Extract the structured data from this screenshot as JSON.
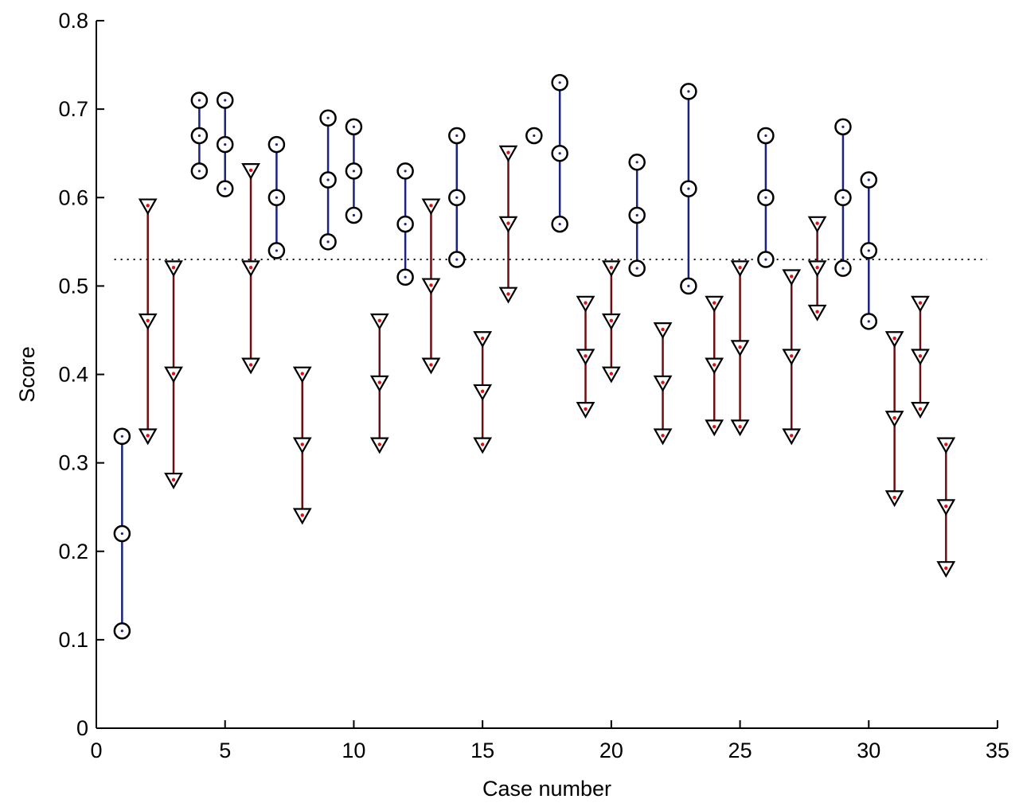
{
  "chart_data": {
    "type": "scatter",
    "title": "",
    "xlabel": "Case number",
    "ylabel": "Score",
    "xlim": [
      0,
      35
    ],
    "ylim": [
      0,
      0.8
    ],
    "xticks": [
      "0",
      "5",
      "10",
      "15",
      "20",
      "25",
      "30",
      "35"
    ],
    "yticks": [
      "0",
      "0.1",
      "0.2",
      "0.3",
      "0.4",
      "0.5",
      "0.6",
      "0.7",
      "0.8"
    ],
    "threshold": 0.53,
    "grid": false,
    "colors": {
      "circle_series": "#1a237e",
      "triangle_series": "#6d0f12",
      "triangle_center_dot": "#e01010",
      "threshold_line": "#000000"
    },
    "series": [
      {
        "marker": "circle",
        "points": [
          {
            "case": 1,
            "values": [
              0.33,
              0.22,
              0.11
            ]
          },
          {
            "case": 4,
            "values": [
              0.71,
              0.67,
              0.63
            ]
          },
          {
            "case": 5,
            "values": [
              0.71,
              0.66,
              0.61
            ]
          },
          {
            "case": 7,
            "values": [
              0.66,
              0.6,
              0.54
            ]
          },
          {
            "case": 9,
            "values": [
              0.69,
              0.62,
              0.55
            ]
          },
          {
            "case": 10,
            "values": [
              0.68,
              0.63,
              0.58
            ]
          },
          {
            "case": 12,
            "values": [
              0.63,
              0.57,
              0.51
            ]
          },
          {
            "case": 14,
            "values": [
              0.67,
              0.6,
              0.53
            ]
          },
          {
            "case": 17,
            "values": [
              0.67
            ]
          },
          {
            "case": 18,
            "values": [
              0.73,
              0.65,
              0.57
            ]
          },
          {
            "case": 21,
            "values": [
              0.64,
              0.58,
              0.52
            ]
          },
          {
            "case": 23,
            "values": [
              0.72,
              0.61,
              0.5
            ]
          },
          {
            "case": 26,
            "values": [
              0.67,
              0.6,
              0.53
            ]
          },
          {
            "case": 29,
            "values": [
              0.68,
              0.6,
              0.52
            ]
          },
          {
            "case": 30,
            "values": [
              0.62,
              0.54,
              0.46
            ]
          }
        ]
      },
      {
        "marker": "triangle",
        "points": [
          {
            "case": 2,
            "values": [
              0.59,
              0.46,
              0.33
            ]
          },
          {
            "case": 3,
            "values": [
              0.52,
              0.4,
              0.28
            ]
          },
          {
            "case": 6,
            "values": [
              0.63,
              0.52,
              0.41
            ]
          },
          {
            "case": 8,
            "values": [
              0.4,
              0.32,
              0.24
            ]
          },
          {
            "case": 11,
            "values": [
              0.46,
              0.39,
              0.32
            ]
          },
          {
            "case": 13,
            "values": [
              0.59,
              0.5,
              0.41
            ]
          },
          {
            "case": 15,
            "values": [
              0.44,
              0.38,
              0.32
            ]
          },
          {
            "case": 16,
            "values": [
              0.65,
              0.57,
              0.49
            ]
          },
          {
            "case": 19,
            "values": [
              0.48,
              0.42,
              0.36
            ]
          },
          {
            "case": 20,
            "values": [
              0.52,
              0.46,
              0.4
            ]
          },
          {
            "case": 22,
            "values": [
              0.45,
              0.39,
              0.33
            ]
          },
          {
            "case": 24,
            "values": [
              0.48,
              0.41,
              0.34
            ]
          },
          {
            "case": 25,
            "values": [
              0.52,
              0.43,
              0.34
            ]
          },
          {
            "case": 27,
            "values": [
              0.51,
              0.42,
              0.33
            ]
          },
          {
            "case": 28,
            "values": [
              0.57,
              0.52,
              0.47
            ]
          },
          {
            "case": 31,
            "values": [
              0.44,
              0.35,
              0.26
            ]
          },
          {
            "case": 32,
            "values": [
              0.48,
              0.42,
              0.36
            ]
          },
          {
            "case": 33,
            "values": [
              0.32,
              0.25,
              0.18
            ]
          }
        ]
      }
    ]
  }
}
